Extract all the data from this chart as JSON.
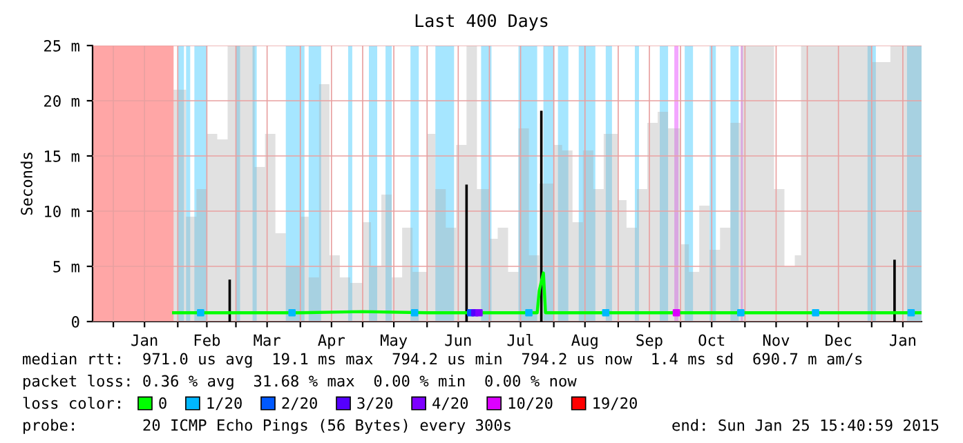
{
  "chart_data": {
    "type": "line",
    "title": "Last 400 Days",
    "ylabel": "Seconds",
    "legend_title": "loss color:",
    "xlim": [
      "2013-12-22",
      "2015-01-25"
    ],
    "xticks": [
      {
        "value": "2014-01-01",
        "label": null
      },
      {
        "value": "2014-01-16",
        "label": "Jan"
      },
      {
        "value": "2014-02-01",
        "label": null
      },
      {
        "value": "2014-02-15",
        "label": "Feb"
      },
      {
        "value": "2014-03-01",
        "label": null
      },
      {
        "value": "2014-03-16",
        "label": "Mar"
      },
      {
        "value": "2014-04-01",
        "label": null
      },
      {
        "value": "2014-04-16",
        "label": "Apr"
      },
      {
        "value": "2014-05-01",
        "label": null
      },
      {
        "value": "2014-05-16",
        "label": "May"
      },
      {
        "value": "2014-06-01",
        "label": null
      },
      {
        "value": "2014-06-16",
        "label": "Jun"
      },
      {
        "value": "2014-07-01",
        "label": null
      },
      {
        "value": "2014-07-16",
        "label": "Jul"
      },
      {
        "value": "2014-08-01",
        "label": null
      },
      {
        "value": "2014-08-16",
        "label": "Aug"
      },
      {
        "value": "2014-09-01",
        "label": null
      },
      {
        "value": "2014-09-16",
        "label": "Sep"
      },
      {
        "value": "2014-10-01",
        "label": null
      },
      {
        "value": "2014-10-16",
        "label": "Oct"
      },
      {
        "value": "2014-11-01",
        "label": null
      },
      {
        "value": "2014-11-16",
        "label": "Nov"
      },
      {
        "value": "2014-12-01",
        "label": null
      },
      {
        "value": "2014-12-16",
        "label": "Dec"
      },
      {
        "value": "2015-01-01",
        "label": null
      },
      {
        "value": "2015-01-16",
        "label": "Jan"
      }
    ],
    "ylim": [
      0,
      25
    ],
    "yticks": [
      0,
      {
        "value": 5,
        "label": "5 m"
      },
      {
        "value": 10,
        "label": "10 m"
      },
      {
        "value": 15,
        "label": "15 m"
      },
      {
        "value": 20,
        "label": "20 m"
      },
      {
        "value": 25,
        "label": "25 m"
      }
    ],
    "grid": true,
    "legend": "bottom",
    "bands": [
      {
        "axis": "x",
        "from": "2014-02-01",
        "to": "2014-02-04",
        "color": "#00b8ff"
      },
      {
        "axis": "x",
        "from": "2014-02-05",
        "to": "2014-02-07",
        "color": "#00b8ff"
      },
      {
        "axis": "x",
        "from": "2014-02-09",
        "to": "2014-02-15",
        "color": "#00b8ff"
      },
      {
        "axis": "x",
        "from": "2014-03-01",
        "to": "2014-03-03",
        "color": "#00b8ff"
      },
      {
        "axis": "x",
        "from": "2014-03-09",
        "to": "2014-03-11",
        "color": "#00b8ff"
      },
      {
        "axis": "x",
        "from": "2014-03-25",
        "to": "2014-04-03",
        "color": "#00b8ff"
      },
      {
        "axis": "x",
        "from": "2014-04-05",
        "to": "2014-04-11",
        "color": "#00b8ff"
      },
      {
        "axis": "x",
        "from": "2014-04-24",
        "to": "2014-04-26",
        "color": "#00b8ff"
      },
      {
        "axis": "x",
        "from": "2014-05-04",
        "to": "2014-05-08",
        "color": "#00b8ff"
      },
      {
        "axis": "x",
        "from": "2014-05-12",
        "to": "2014-05-15",
        "color": "#00b8ff"
      },
      {
        "axis": "x",
        "from": "2014-05-24",
        "to": "2014-05-28",
        "color": "#00b8ff"
      },
      {
        "axis": "x",
        "from": "2014-06-05",
        "to": "2014-06-14",
        "color": "#00b8ff"
      },
      {
        "axis": "x",
        "from": "2014-06-27",
        "to": "2014-07-02",
        "color": "#00b8ff"
      },
      {
        "axis": "x",
        "from": "2014-07-15",
        "to": "2014-07-24",
        "color": "#00b8ff"
      },
      {
        "axis": "x",
        "from": "2014-07-27",
        "to": "2014-08-01",
        "color": "#00b8ff"
      },
      {
        "axis": "x",
        "from": "2014-08-03",
        "to": "2014-08-08",
        "color": "#00b8ff"
      },
      {
        "axis": "x",
        "from": "2014-08-13",
        "to": "2014-08-21",
        "color": "#00b8ff"
      },
      {
        "axis": "x",
        "from": "2014-08-26",
        "to": "2014-08-29",
        "color": "#00b8ff"
      },
      {
        "axis": "x",
        "from": "2014-09-09",
        "to": "2014-09-11",
        "color": "#00b8ff"
      },
      {
        "axis": "x",
        "from": "2014-09-21",
        "to": "2014-09-25",
        "color": "#00b8ff"
      },
      {
        "axis": "x",
        "from": "2014-09-28",
        "to": "2014-09-30",
        "color": "#dd00ff"
      },
      {
        "axis": "x",
        "from": "2014-10-03",
        "to": "2014-10-07",
        "color": "#00b8ff"
      },
      {
        "axis": "x",
        "from": "2014-10-15",
        "to": "2014-10-18",
        "color": "#00b8ff"
      },
      {
        "axis": "x",
        "from": "2014-10-25",
        "to": "2014-10-29",
        "color": "#00b8ff"
      },
      {
        "axis": "x",
        "from": "2014-10-30",
        "to": "2014-10-31",
        "color": "#dd00ff"
      },
      {
        "axis": "x",
        "from": "2014-12-30",
        "to": "2015-01-03",
        "color": "#00b8ff"
      },
      {
        "axis": "x",
        "from": "2015-01-18",
        "to": "2015-01-25",
        "color": "#00b8ff"
      }
    ],
    "series": [
      {
        "type": "area",
        "color": "#aaaaaa",
        "x": [
          "2014-01-30",
          "2014-02-01",
          "2014-02-05",
          "2014-02-10",
          "2014-02-15",
          "2014-02-20",
          "2014-02-25",
          "2014-03-01",
          "2014-03-05",
          "2014-03-10",
          "2014-03-15",
          "2014-03-20",
          "2014-03-25",
          "2014-04-01",
          "2014-04-05",
          "2014-04-10",
          "2014-04-15",
          "2014-04-20",
          "2014-04-25",
          "2014-05-01",
          "2014-05-05",
          "2014-05-10",
          "2014-05-15",
          "2014-05-20",
          "2014-05-25",
          "2014-06-01",
          "2014-06-05",
          "2014-06-10",
          "2014-06-15",
          "2014-06-20",
          "2014-06-25",
          "2014-07-01",
          "2014-07-05",
          "2014-07-10",
          "2014-07-15",
          "2014-07-20",
          "2014-07-25",
          "2014-08-01",
          "2014-08-05",
          "2014-08-10",
          "2014-08-15",
          "2014-08-20",
          "2014-08-25",
          "2014-09-01",
          "2014-09-05",
          "2014-09-10",
          "2014-09-15",
          "2014-09-20",
          "2014-09-25",
          "2014-10-01",
          "2014-10-05",
          "2014-10-10",
          "2014-10-15",
          "2014-10-20",
          "2014-10-25",
          "2014-10-30",
          "2014-11-05",
          "2014-11-10",
          "2014-11-15",
          "2014-11-20",
          "2014-11-25",
          "2014-11-28",
          "2014-12-05",
          "2014-12-15",
          "2014-12-25",
          "2015-01-01",
          "2015-01-10",
          "2015-01-25"
        ],
        "values": [
          21,
          21,
          9.5,
          12,
          17,
          16.5,
          25,
          25,
          25,
          14,
          17,
          8,
          5,
          9.5,
          4,
          21.5,
          6,
          4,
          3.5,
          9,
          5,
          11.5,
          4,
          8.5,
          4.5,
          17,
          12,
          8.5,
          16,
          25,
          12,
          7.5,
          8.5,
          4.5,
          17.5,
          6,
          12.5,
          16,
          15.5,
          9,
          15.5,
          12,
          17,
          11,
          8.5,
          12,
          18,
          19,
          17.5,
          7,
          4.5,
          10.5,
          6.5,
          8.5,
          18,
          25,
          25,
          25,
          12,
          5,
          6,
          25,
          25,
          25,
          25,
          23.5,
          25,
          25
        ]
      },
      {
        "type": "bar",
        "color": "#000000",
        "x": [
          "2014-02-26",
          "2014-06-20",
          "2014-07-26",
          "2015-01-12"
        ],
        "values": [
          3.8,
          12.4,
          19.1,
          5.6
        ]
      },
      {
        "name": "0",
        "color": "#00ff00",
        "x": [
          "2014-01-30",
          "2014-03-01",
          "2014-04-01",
          "2014-05-01",
          "2014-06-01",
          "2014-07-01",
          "2014-07-24",
          "2014-07-25",
          "2014-07-27",
          "2014-07-28",
          "2014-08-15",
          "2014-09-15",
          "2014-10-15",
          "2014-11-15",
          "2014-12-15",
          "2015-01-25"
        ],
        "values": [
          0.8,
          0.8,
          0.8,
          0.9,
          0.8,
          0.8,
          0.8,
          2.8,
          4.4,
          0.8,
          0.8,
          0.8,
          0.8,
          0.8,
          0.8,
          0.8
        ]
      },
      {
        "name": "1/20",
        "type": "scatter",
        "marker": "square",
        "color": "#00b8ff",
        "x": [
          "2014-02-12",
          "2014-03-28",
          "2014-05-26",
          "2014-07-20",
          "2014-08-26",
          "2014-10-30",
          "2014-12-05",
          "2015-01-20"
        ],
        "values": [
          0.8,
          0.8,
          0.8,
          0.8,
          0.8,
          0.8,
          0.8,
          0.8
        ]
      },
      {
        "name": "2/20",
        "type": "scatter",
        "marker": "square",
        "color": "#0059ff",
        "x": [
          "2014-06-22"
        ],
        "values": [
          0.8
        ]
      },
      {
        "name": "3/20",
        "type": "scatter",
        "marker": "square",
        "color": "#5500ff",
        "x": [
          "2014-06-24"
        ],
        "values": [
          0.8
        ]
      },
      {
        "name": "4/20",
        "type": "scatter",
        "marker": "square",
        "color": "#7e00ff",
        "x": [
          "2014-06-26"
        ],
        "values": [
          0.8
        ]
      },
      {
        "name": "10/20",
        "type": "scatter",
        "marker": "square",
        "color": "#dd00ff",
        "x": [
          "2014-09-29"
        ],
        "values": [
          0.8
        ]
      },
      {
        "name": "19/20",
        "type": "area",
        "color": "#ff0000",
        "x": [
          "2013-12-22",
          "2014-01-30"
        ],
        "values": [
          25,
          25
        ]
      }
    ],
    "annotations": [
      "median rtt:  971.0 us avg  19.1 ms max  794.2 us min  794.2 us now  1.4 ms sd  690.7 m am/s",
      "packet loss: 0.36 % avg  31.68 % max  0.00 % min  0.00 % now",
      "probe:       20 ICMP Echo Pings (56 Bytes) every 300s",
      "end: Sun Jan 25 15:40:59 2015"
    ]
  }
}
